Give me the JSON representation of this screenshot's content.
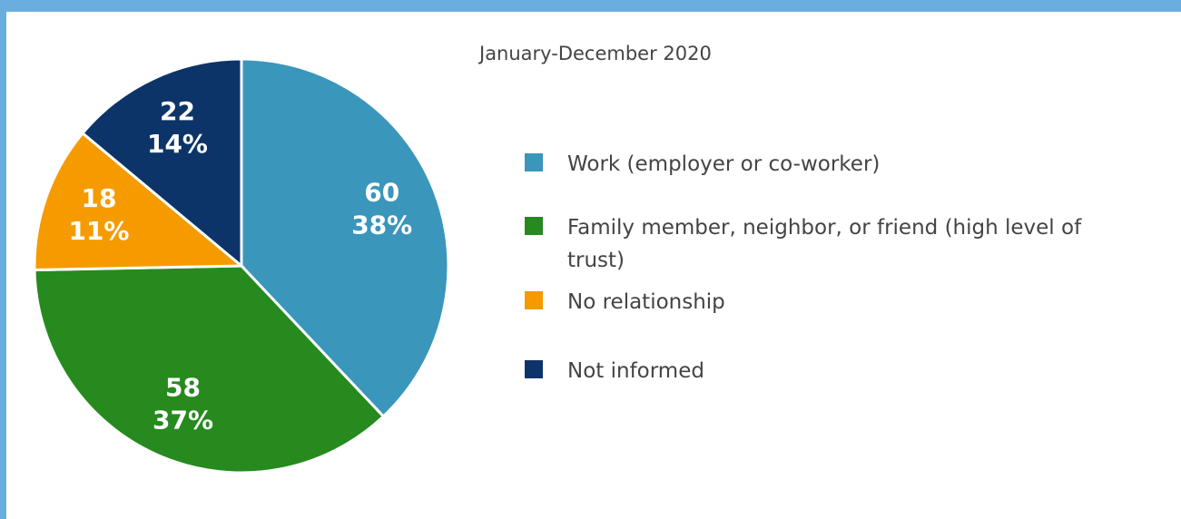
{
  "chart_data": {
    "type": "pie",
    "subtitle": "January-December 2020",
    "categories": [
      "Work (employer or co-worker)",
      "Family member, neighbor, or friend (high level of trust)",
      "No relationship",
      "Not informed"
    ],
    "values": [
      60,
      58,
      18,
      22
    ],
    "percent_labels": [
      "38%",
      "37%",
      "11%",
      "14%"
    ],
    "colors": [
      "#3a96bb",
      "#268a1f",
      "#f59b00",
      "#0d3468"
    ],
    "legend": "right"
  }
}
